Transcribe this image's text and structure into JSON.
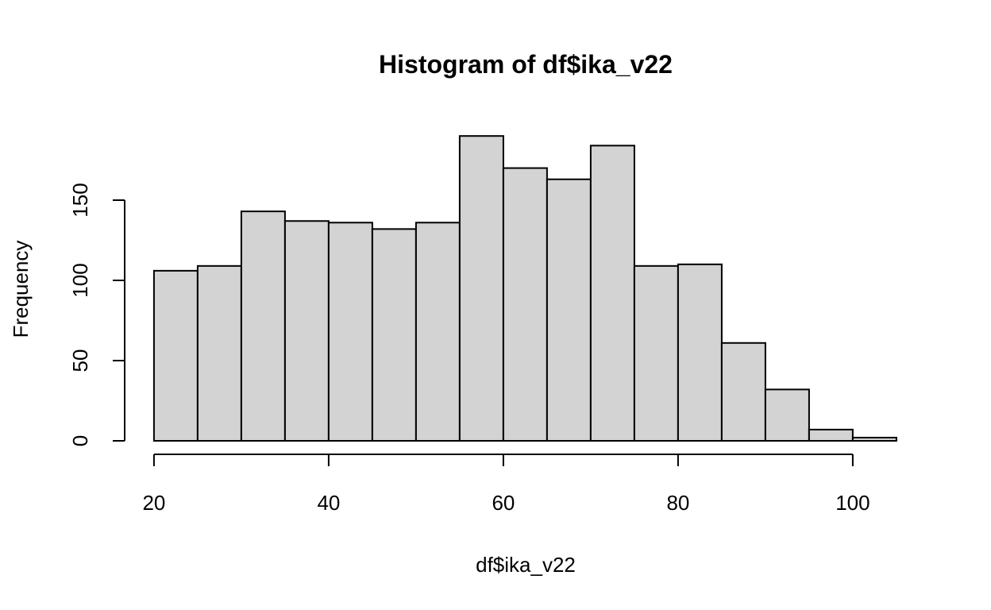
{
  "chart_data": {
    "type": "bar",
    "title": "Histogram of df$ika_v22",
    "xlabel": "df$ika_v22",
    "ylabel": "Frequency",
    "bin_edges": [
      20,
      25,
      30,
      35,
      40,
      45,
      50,
      55,
      60,
      65,
      70,
      75,
      80,
      85,
      90,
      95,
      100,
      105
    ],
    "values": [
      106,
      109,
      143,
      137,
      136,
      132,
      136,
      190,
      170,
      163,
      184,
      109,
      110,
      61,
      32,
      7,
      2
    ],
    "xlim": [
      20,
      105
    ],
    "ylim": [
      0,
      190
    ],
    "x_ticks": [
      20,
      40,
      60,
      80,
      100
    ],
    "y_ticks": [
      0,
      50,
      100,
      150
    ],
    "grid": false,
    "bar_color": "#d3d3d3",
    "edge_color": "#000000"
  }
}
